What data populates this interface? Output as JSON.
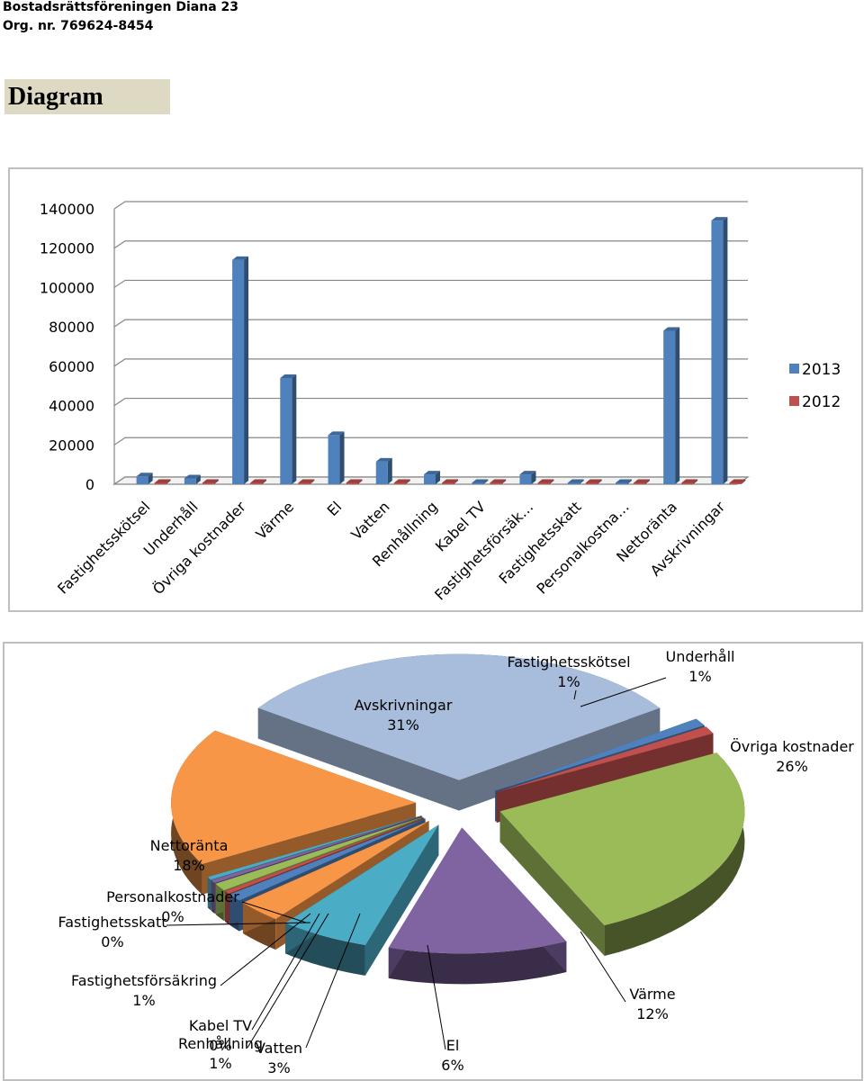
{
  "header": {
    "org_name": "Bostadsrättsföreningen Diana 23",
    "org_nr": "Org. nr. 769624-8454",
    "section_title": "Diagram"
  },
  "chart_data": [
    {
      "type": "bar",
      "title": "",
      "xlabel": "",
      "ylabel": "",
      "ylim": [
        0,
        140000
      ],
      "yticks": [
        0,
        20000,
        40000,
        60000,
        80000,
        100000,
        120000,
        140000
      ],
      "grid": true,
      "legend": "right",
      "categories": [
        "Fastighetsskötsel",
        "Underhåll",
        "Övriga kostnader",
        "Värme",
        "El",
        "Vatten",
        "Renhållning",
        "Kabel TV",
        "Fastighetsförsäk…",
        "Fastighetsskatt",
        "Personalkostna…",
        "Nettoränta",
        "Avskrivningar"
      ],
      "series": [
        {
          "name": "2013",
          "color": "#4f81bd",
          "values": [
            4000,
            3000,
            114000,
            54000,
            25000,
            11500,
            5000,
            0,
            5000,
            0,
            0,
            78000,
            134000
          ]
        },
        {
          "name": "2012",
          "color": "#c0504d",
          "values": [
            0,
            0,
            0,
            0,
            0,
            0,
            0,
            0,
            0,
            0,
            0,
            0,
            0
          ]
        }
      ]
    },
    {
      "type": "pie",
      "title": "",
      "slices": [
        {
          "name": "Avskrivningar",
          "value": 31,
          "label": "31%",
          "color": "#a8bcdc"
        },
        {
          "name": "Fastighetsskötsel",
          "value": 1,
          "label": "1%",
          "color": "#4f81bd"
        },
        {
          "name": "Underhåll",
          "value": 1,
          "label": "1%",
          "color": "#c0504d"
        },
        {
          "name": "Övriga kostnader",
          "value": 26,
          "label": "26%",
          "color": "#9bbb59"
        },
        {
          "name": "Värme",
          "value": 12,
          "label": "12%",
          "color": "#8064a2"
        },
        {
          "name": "El",
          "value": 6,
          "label": "6%",
          "color": "#4bacc6"
        },
        {
          "name": "Vatten",
          "value": 3,
          "label": "3%",
          "color": "#f79646"
        },
        {
          "name": "Renhållning",
          "value": 1,
          "label": "1%",
          "color": "#4f81bd"
        },
        {
          "name": "Kabel TV",
          "value": 0,
          "label": "0%",
          "color": "#c0504d"
        },
        {
          "name": "Fastighetsförsäkring",
          "value": 1,
          "label": "1%",
          "color": "#9bbb59"
        },
        {
          "name": "Fastighetsskatt",
          "value": 0,
          "label": "0%",
          "color": "#8064a2"
        },
        {
          "name": "Personalkostnader",
          "value": 0,
          "label": "0%",
          "color": "#4bacc6"
        },
        {
          "name": "Nettoränta",
          "value": 18,
          "label": "18%",
          "color": "#f79646"
        }
      ]
    }
  ]
}
